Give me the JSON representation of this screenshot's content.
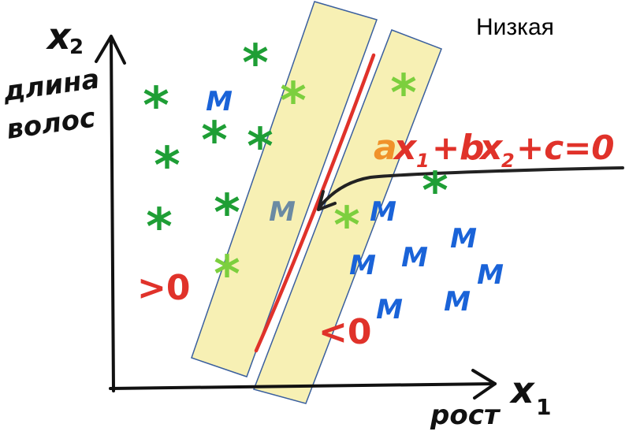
{
  "title": "Низкая",
  "axes": {
    "x_label": "рост",
    "x_symbol": "x",
    "x_sub": "1",
    "y_label_line1": "длина",
    "y_label_line2": "волос",
    "y_symbol": "x",
    "y_sub": "2"
  },
  "equation": {
    "a": "a",
    "x1": "x",
    "sub1": "1",
    "plus1": "+",
    "b": "b",
    "x2": "x",
    "sub2": "2",
    "rest": "+c=0"
  },
  "region_labels": {
    "left": ">0",
    "right": "<0"
  },
  "class_symbols": {
    "star": "*",
    "m": "M"
  },
  "colors": {
    "star_green": "#1e9e35",
    "star_light": "#7ccf3e",
    "m_blue": "#1a63d8",
    "m_gray": "#6b8aa3",
    "line_red": "#e0322a",
    "band_fill": "#f7f0b4",
    "band_stroke": "#3a5f9e",
    "arrow_black": "#222222",
    "eq_orange": "#f0922a"
  }
}
